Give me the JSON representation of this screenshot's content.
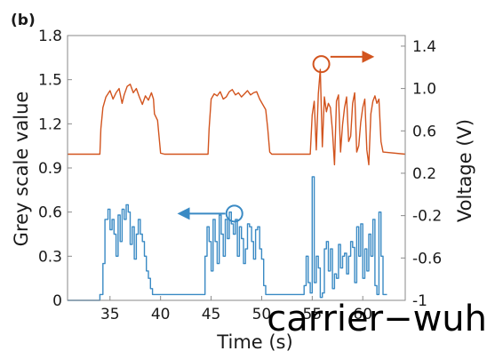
{
  "panel_label": "(b)",
  "watermark": "carrier−wuh",
  "colors": {
    "voltage": "#d2541e",
    "grey": "#3a8ac4",
    "frame": "#8a8a8a"
  },
  "chart_data": {
    "type": "line",
    "xlabel": "Time (s)",
    "ylabel_left": "Grey scale value",
    "ylabel_right": "Voltage (V)",
    "xlim": [
      30.8,
      64.2
    ],
    "ylim_left": [
      0,
      1.8
    ],
    "ylim_right": [
      -1.0,
      1.5
    ],
    "x_ticks": [
      {
        "value": 35,
        "label": "35"
      },
      {
        "value": 40,
        "label": "40"
      },
      {
        "value": 45,
        "label": "45"
      },
      {
        "value": 50,
        "label": "50"
      },
      {
        "value": 55,
        "label": "55"
      },
      {
        "value": 60,
        "label": "60"
      }
    ],
    "y_ticks_left": [
      {
        "value": 0,
        "label": "0"
      },
      {
        "value": 0.3,
        "label": "0.3"
      },
      {
        "value": 0.6,
        "label": "0.6"
      },
      {
        "value": 0.9,
        "label": "0.9"
      },
      {
        "value": 1.2,
        "label": "1.2"
      },
      {
        "value": 1.5,
        "label": "1.5"
      },
      {
        "value": 1.8,
        "label": "1.8"
      }
    ],
    "y_ticks_right": [
      {
        "value": -1.0,
        "label": "-1"
      },
      {
        "value": -0.6,
        "label": "-0.6"
      },
      {
        "value": -0.2,
        "label": "-0.2"
      },
      {
        "value": 0.2,
        "label": "0.2"
      },
      {
        "value": 0.6,
        "label": "0.6"
      },
      {
        "value": 1.0,
        "label": "1.0"
      },
      {
        "value": 1.4,
        "label": "1.4"
      }
    ],
    "series": [
      {
        "axis": "right",
        "color": "#d2541e",
        "x": [
          30.8,
          34.0,
          34.1,
          34.3,
          34.6,
          35.0,
          35.3,
          35.6,
          35.9,
          36.2,
          36.4,
          36.7,
          37.0,
          37.3,
          37.6,
          37.9,
          38.2,
          38.5,
          38.8,
          39.1,
          39.3,
          39.4,
          39.7,
          40.0,
          40.4,
          44.7,
          44.8,
          45.0,
          45.3,
          45.6,
          45.9,
          46.2,
          46.5,
          46.8,
          47.1,
          47.4,
          47.7,
          48.0,
          48.3,
          48.6,
          48.9,
          49.2,
          49.5,
          49.8,
          50.1,
          50.4,
          50.6,
          50.8,
          51.0,
          54.8,
          55.0,
          55.2,
          55.4,
          55.6,
          55.8,
          56.0,
          56.2,
          56.4,
          56.6,
          56.8,
          57.0,
          57.2,
          57.4,
          57.6,
          57.8,
          58.0,
          58.2,
          58.4,
          58.6,
          58.8,
          59.0,
          59.2,
          59.4,
          59.6,
          59.8,
          60.0,
          60.2,
          60.4,
          60.6,
          60.8,
          61.0,
          61.2,
          61.4,
          61.6,
          61.8,
          62.0,
          64.2
        ],
        "y": [
          0.38,
          0.38,
          0.62,
          0.82,
          0.92,
          0.98,
          0.9,
          0.96,
          1.0,
          0.86,
          0.94,
          1.02,
          1.04,
          0.96,
          1.0,
          0.92,
          0.85,
          0.93,
          0.89,
          0.96,
          0.9,
          0.76,
          0.7,
          0.39,
          0.38,
          0.38,
          0.62,
          0.9,
          0.95,
          0.93,
          0.97,
          0.9,
          0.92,
          0.97,
          0.99,
          0.94,
          0.96,
          0.92,
          0.95,
          0.98,
          0.94,
          0.96,
          0.97,
          0.9,
          0.85,
          0.8,
          0.62,
          0.4,
          0.38,
          0.38,
          0.75,
          0.88,
          0.42,
          0.95,
          1.18,
          0.45,
          0.92,
          0.78,
          0.86,
          0.82,
          0.6,
          0.28,
          0.88,
          0.94,
          0.4,
          0.66,
          0.82,
          0.92,
          0.5,
          0.55,
          0.86,
          0.96,
          0.4,
          0.46,
          0.68,
          0.82,
          0.9,
          0.42,
          0.28,
          0.76,
          0.88,
          0.93,
          0.86,
          0.9,
          0.5,
          0.4,
          0.38
        ]
      },
      {
        "axis": "left",
        "color": "#3a8ac4",
        "step": true,
        "x": [
          30.8,
          34.0,
          34.3,
          34.5,
          34.8,
          35.0,
          35.2,
          35.4,
          35.6,
          35.8,
          36.0,
          36.2,
          36.4,
          36.6,
          36.8,
          37.0,
          37.2,
          37.4,
          37.6,
          37.8,
          38.0,
          38.2,
          38.4,
          38.6,
          38.8,
          39.0,
          39.2,
          39.4,
          39.6,
          39.8,
          44.2,
          44.4,
          44.6,
          44.8,
          45.0,
          45.2,
          45.4,
          45.6,
          45.8,
          46.0,
          46.2,
          46.4,
          46.6,
          46.8,
          47.0,
          47.2,
          47.4,
          47.6,
          47.8,
          48.0,
          48.2,
          48.4,
          48.6,
          48.8,
          49.0,
          49.2,
          49.4,
          49.6,
          49.8,
          50.0,
          50.2,
          50.4,
          50.6,
          50.8,
          51.0,
          54.0,
          54.2,
          54.4,
          54.6,
          54.8,
          55.0,
          55.2,
          55.4,
          55.6,
          55.8,
          56.0,
          56.2,
          56.4,
          56.6,
          56.8,
          57.0,
          57.2,
          57.4,
          57.6,
          57.8,
          58.0,
          58.2,
          58.4,
          58.6,
          58.8,
          59.0,
          59.2,
          59.4,
          59.6,
          59.8,
          60.0,
          60.2,
          60.4,
          60.6,
          60.8,
          61.0,
          61.2,
          61.4,
          61.6,
          61.8,
          62.0,
          62.4
        ],
        "y": [
          0,
          0.04,
          0.25,
          0.55,
          0.62,
          0.48,
          0.55,
          0.45,
          0.3,
          0.58,
          0.4,
          0.62,
          0.55,
          0.65,
          0.6,
          0.38,
          0.5,
          0.28,
          0.45,
          0.55,
          0.45,
          0.4,
          0.3,
          0.2,
          0.15,
          0.08,
          0.04,
          0.04,
          0.04,
          0.04,
          0.04,
          0.3,
          0.5,
          0.4,
          0.2,
          0.55,
          0.4,
          0.25,
          0.58,
          0.45,
          0.3,
          0.55,
          0.42,
          0.6,
          0.52,
          0.45,
          0.55,
          0.3,
          0.5,
          0.42,
          0.25,
          0.35,
          0.52,
          0.5,
          0.4,
          0.28,
          0.48,
          0.5,
          0.35,
          0.28,
          0.1,
          0.04,
          0.04,
          0.04,
          0.04,
          0.04,
          0.1,
          0.3,
          0.12,
          0.05,
          0.84,
          0.12,
          0.3,
          0.22,
          0.02,
          0.05,
          0.35,
          0.4,
          0.2,
          0.35,
          0.08,
          0.18,
          0.15,
          0.38,
          0.22,
          0.3,
          0.32,
          0.18,
          0.3,
          0.4,
          0.36,
          0.12,
          0.5,
          0.3,
          0.52,
          0.15,
          0.35,
          0.2,
          0.45,
          0.3,
          0.55,
          0.1,
          0.04,
          0.6,
          0.3,
          0.04,
          0.04
        ]
      }
    ],
    "annotations": [
      {
        "type": "circle",
        "axis": "right",
        "x": 55.9,
        "y": 1.23,
        "color": "#d2541e"
      },
      {
        "type": "arrow",
        "axis": "right",
        "from": [
          56.8,
          1.3
        ],
        "to": [
          60.9,
          1.3
        ],
        "color": "#d2541e"
      },
      {
        "type": "circle",
        "axis": "left",
        "x": 47.3,
        "y": 0.59,
        "color": "#3a8ac4"
      },
      {
        "type": "arrow",
        "axis": "left",
        "from": [
          46.4,
          0.59
        ],
        "to": [
          41.9,
          0.59
        ],
        "color": "#3a8ac4"
      }
    ]
  }
}
